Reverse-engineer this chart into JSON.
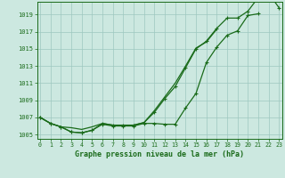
{
  "title": "Graphe pression niveau de la mer (hPa)",
  "x_values": [
    0,
    1,
    2,
    3,
    4,
    5,
    6,
    7,
    8,
    9,
    10,
    11,
    12,
    13,
    14,
    15,
    16,
    17,
    18,
    19,
    20,
    21,
    22,
    23
  ],
  "line1_y": [
    1007.0,
    1006.3,
    1005.9,
    1005.8,
    1005.6,
    1005.9,
    1006.3,
    1006.1,
    1006.1,
    1006.1,
    1006.4,
    1007.8,
    1009.4,
    1011.0,
    1013.0,
    1015.1,
    1015.8,
    1017.3,
    null,
    null,
    null,
    null,
    null,
    null
  ],
  "line2_y": [
    1007.0,
    1006.3,
    1005.9,
    1005.3,
    1005.2,
    1005.5,
    1006.2,
    1006.0,
    1006.0,
    1006.0,
    1006.3,
    1006.3,
    1006.2,
    1006.2,
    1008.1,
    1009.8,
    1013.4,
    1015.2,
    1016.6,
    1017.1,
    1018.9,
    1019.1,
    null,
    null
  ],
  "line3_y": [
    1007.0,
    1006.3,
    1005.9,
    1005.3,
    1005.2,
    1005.5,
    1006.3,
    1006.1,
    1006.1,
    1006.1,
    1006.4,
    1007.6,
    1009.2,
    1010.6,
    1012.8,
    1015.0,
    1015.9,
    1017.4,
    1018.6,
    1018.6,
    1019.4,
    1021.0,
    1021.5,
    1019.8
  ],
  "ylim": [
    1004.5,
    1020.5
  ],
  "yticks": [
    1005,
    1007,
    1009,
    1011,
    1013,
    1015,
    1017,
    1019
  ],
  "xlim": [
    -0.3,
    23.3
  ],
  "line_color": "#1a6b1a",
  "bg_color": "#cce8e0",
  "grid_color": "#9ec8c0",
  "title_color": "#1a6b1a",
  "title_bg": "#a8d8a8",
  "marker": "+"
}
